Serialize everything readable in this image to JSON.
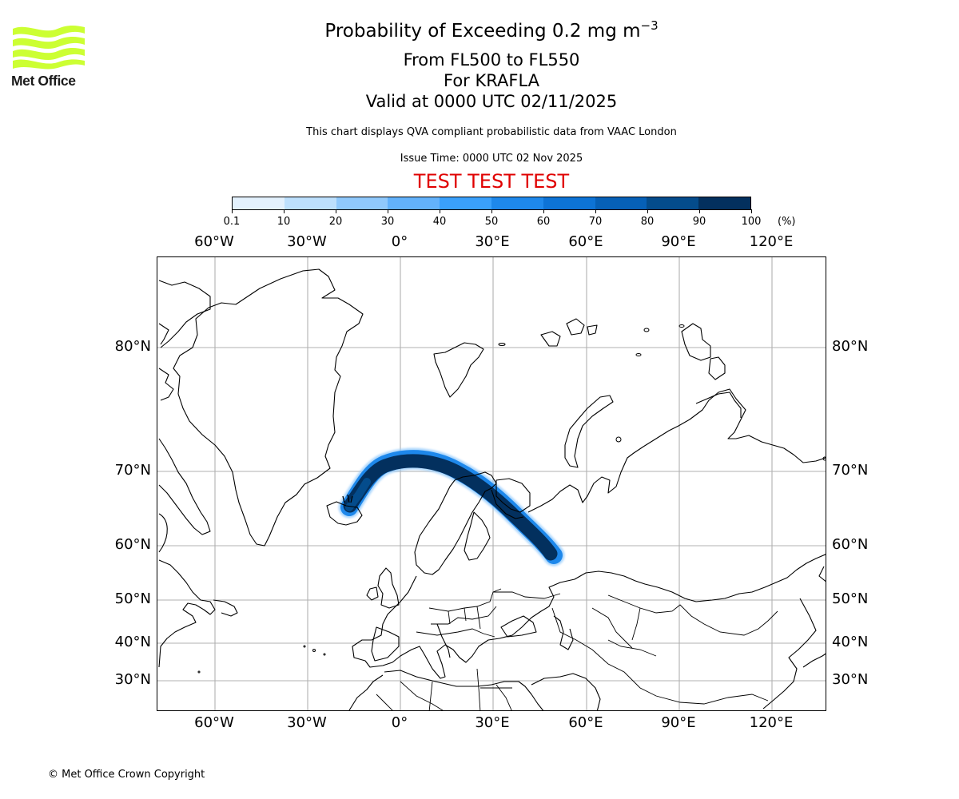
{
  "logo": {
    "brand": "Met Office",
    "icon": "met-office-wave-logo",
    "color": "#ccff33"
  },
  "header": {
    "title_main": "Probability of Exceeding 0.2 mg m",
    "title_unit_sup": "−3",
    "level_range": "From FL500 to FL550",
    "volcano": "For KRAFLA",
    "valid_time": "Valid at 0000 UTC 02/11/2025",
    "note": "This chart displays QVA compliant probabilistic data from VAAC London",
    "issue_time": "Issue Time: 0000 UTC 02 Nov 2025",
    "test_banner": "TEST TEST TEST",
    "test_color": "#e00000"
  },
  "colorbar": {
    "unit": "(%)",
    "ticks": [
      "0.1",
      "10",
      "20",
      "30",
      "40",
      "50",
      "60",
      "70",
      "80",
      "90",
      "100"
    ],
    "colors": [
      "#e3f1fd",
      "#bde0fd",
      "#90c9fc",
      "#63b2fb",
      "#3aa0fb",
      "#1e88eb",
      "#0d73d6",
      "#0660b7",
      "#044c8c",
      "#03305e"
    ]
  },
  "map": {
    "projection": "Plate Carree-like (Mercator latitude spacing)",
    "lon_labels": [
      "60°W",
      "30°W",
      "0°",
      "30°E",
      "60°E",
      "90°E",
      "120°E"
    ],
    "lat_labels": [
      "80°N",
      "70°N",
      "60°N",
      "50°N",
      "40°N",
      "30°N"
    ],
    "source_volcano": "KRAFLA",
    "source_marker_icon": "volcano-icon",
    "plume_color": "#03305e",
    "plume_edge_color": "#63b2fb"
  },
  "chart_data": {
    "type": "heatmap",
    "title": "Probability of Exceeding 0.2 mg m⁻³",
    "subtitle": [
      "From FL500 to FL550",
      "For KRAFLA",
      "Valid at 0000 UTC 02/11/2025"
    ],
    "colorbar_levels": [
      0.1,
      10,
      20,
      30,
      40,
      50,
      60,
      70,
      80,
      90,
      100
    ],
    "colorbar_unit": "%",
    "xaxis_ticks": [
      "60°W",
      "30°W",
      "0°",
      "30°E",
      "60°E",
      "90°E",
      "120°E"
    ],
    "yaxis_ticks": [
      "80°N",
      "70°N",
      "60°N",
      "50°N",
      "40°N",
      "30°N"
    ],
    "extent": {
      "lon": [
        -78,
        138
      ],
      "lat": [
        25,
        87
      ]
    },
    "grid": true,
    "plume_path_lonlat": [
      [
        -16.8,
        65.7
      ],
      [
        -10,
        68.5
      ],
      [
        -4,
        70.1
      ],
      [
        5,
        70.4
      ],
      [
        15,
        69.8
      ],
      [
        22,
        69.2
      ],
      [
        28,
        67.5
      ],
      [
        34,
        65
      ],
      [
        40,
        62
      ],
      [
        46,
        58.5
      ]
    ],
    "plume_peak_probability_pct": "90-100",
    "plume_edge_probability_pct": "10-40"
  },
  "footer": {
    "copyright": "© Met Office Crown Copyright"
  }
}
